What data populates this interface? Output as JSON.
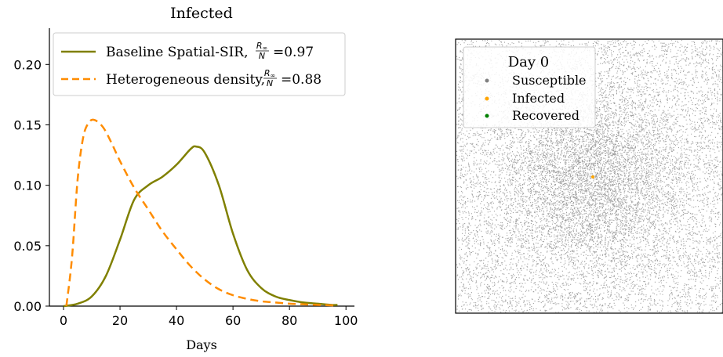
{
  "chart_data": [
    {
      "type": "line",
      "title": "Infected",
      "xlabel": "Days",
      "ylabel": "",
      "xlim": [
        -5,
        103
      ],
      "ylim": [
        0,
        0.23
      ],
      "xticks": [
        "0",
        "20",
        "40",
        "60",
        "80",
        "100"
      ],
      "yticks": [
        "0.00",
        "0.05",
        "0.10",
        "0.15",
        "0.20"
      ],
      "grid": false,
      "legend_position": "top",
      "series": [
        {
          "name": "Baseline Spatial-SIR, R∞/N =0.97",
          "legend_text": "Baseline Spatial-SIR,",
          "legend_value": "=0.97",
          "color": "#808000",
          "style": "solid",
          "points": [
            [
              0,
              0
            ],
            [
              5,
              0.002
            ],
            [
              10,
              0.008
            ],
            [
              15,
              0.025
            ],
            [
              20,
              0.055
            ],
            [
              25,
              0.088
            ],
            [
              30,
              0.1
            ],
            [
              35,
              0.107
            ],
            [
              40,
              0.117
            ],
            [
              45,
              0.13
            ],
            [
              47,
              0.132
            ],
            [
              50,
              0.127
            ],
            [
              55,
              0.1
            ],
            [
              60,
              0.06
            ],
            [
              65,
              0.03
            ],
            [
              70,
              0.015
            ],
            [
              75,
              0.008
            ],
            [
              80,
              0.005
            ],
            [
              85,
              0.003
            ],
            [
              90,
              0.002
            ],
            [
              95,
              0.001
            ],
            [
              97,
              0.001
            ]
          ]
        },
        {
          "name": "Heterogeneous density, R∞/N =0.88",
          "legend_text": "Heterogeneous density,",
          "legend_value": "=0.88",
          "color": "#ff8c00",
          "style": "dashed",
          "points": [
            [
              1,
              0
            ],
            [
              3,
              0.04
            ],
            [
              5,
              0.105
            ],
            [
              7,
              0.14
            ],
            [
              9,
              0.152
            ],
            [
              11,
              0.154
            ],
            [
              14,
              0.148
            ],
            [
              17,
              0.135
            ],
            [
              20,
              0.12
            ],
            [
              25,
              0.098
            ],
            [
              30,
              0.08
            ],
            [
              35,
              0.062
            ],
            [
              40,
              0.047
            ],
            [
              45,
              0.033
            ],
            [
              50,
              0.022
            ],
            [
              55,
              0.014
            ],
            [
              60,
              0.009
            ],
            [
              65,
              0.006
            ],
            [
              70,
              0.004
            ],
            [
              75,
              0.003
            ],
            [
              80,
              0.002
            ],
            [
              85,
              0.0015
            ],
            [
              90,
              0.001
            ],
            [
              97,
              0.0005
            ]
          ]
        }
      ]
    },
    {
      "type": "scatter",
      "title": "",
      "legend_title": "Day 0",
      "legend_position": "top-left",
      "axes": "off",
      "series": [
        {
          "name": "Susceptible",
          "color": "#808080"
        },
        {
          "name": "Infected",
          "color": "#ffa500"
        },
        {
          "name": "Recovered",
          "color": "#008000"
        }
      ]
    }
  ]
}
